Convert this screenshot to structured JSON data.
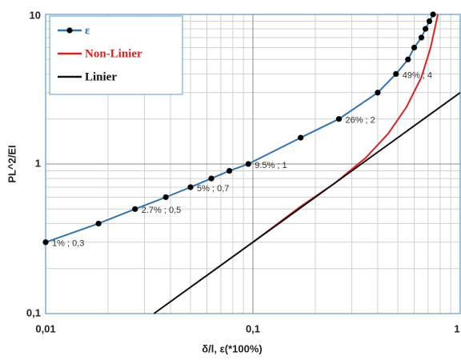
{
  "chart_data": {
    "type": "line",
    "x_label": "δ/l, ε(*100%)",
    "y_label": "PL^2/EI",
    "xscale": "log",
    "yscale": "log",
    "grid": true,
    "minor_grid": true,
    "legend": "upper left",
    "xlim": [
      0.01,
      1
    ],
    "ylim": [
      0.1,
      10
    ],
    "xticks": [
      {
        "value": 0.01,
        "label": "0,01"
      },
      {
        "value": 0.1,
        "label": "0,1"
      },
      1
    ],
    "yticks": [
      {
        "value": 0.1,
        "label": "0,1"
      },
      1,
      10
    ],
    "series": [
      {
        "name": "ε",
        "color": "#2e75b6",
        "markers": true,
        "x": [
          0.01,
          0.018,
          0.027,
          0.038,
          0.05,
          0.063,
          0.077,
          0.095,
          0.17,
          0.26,
          0.4,
          0.49,
          0.56,
          0.6,
          0.65,
          0.68,
          0.71,
          0.74
        ],
        "values": [
          0.3,
          0.4,
          0.5,
          0.6,
          0.7,
          0.8,
          0.9,
          1,
          1.5,
          2,
          3,
          4,
          5,
          6,
          7,
          8,
          9,
          10
        ],
        "value_labels": [
          "1% ; 0,3",
          null,
          "2.7% ; 0,5",
          null,
          "5% ; 0,7",
          null,
          null,
          "9.5% ; 1",
          null,
          "26% ; 2",
          null,
          "49% ; 4",
          null,
          null,
          null,
          null,
          null,
          null
        ]
      },
      {
        "name": "Non-Linier",
        "color": "#e02020",
        "markers": false,
        "x": [
          0.1,
          0.17,
          0.25,
          0.35,
          0.45,
          0.55,
          0.65,
          0.72,
          0.78
        ],
        "values": [
          0.3,
          0.52,
          0.75,
          1.1,
          1.6,
          2.4,
          3.8,
          6,
          10
        ]
      },
      {
        "name": "Linier",
        "color": "#111111",
        "markers": false,
        "x": [
          0.0333,
          1
        ],
        "values": [
          0.1,
          3
        ]
      }
    ]
  }
}
